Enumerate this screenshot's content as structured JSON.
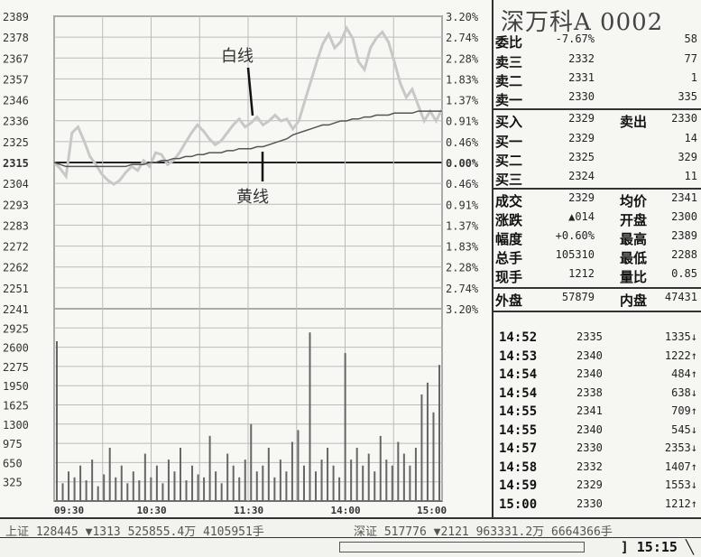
{
  "chart_data": {
    "type": "line",
    "times": [
      "09:30",
      "10:30",
      "11:30",
      "14:00",
      "15:00"
    ],
    "price_ticks": [
      "2389",
      "2378",
      "2367",
      "2357",
      "2346",
      "2336",
      "2325",
      "2315",
      "2304",
      "2293",
      "2283",
      "2272",
      "2262",
      "2251",
      "2241"
    ],
    "percent_ticks": [
      "3.20%",
      "2.74%",
      "2.28%",
      "1.83%",
      "1.37%",
      "0.91%",
      "0.46%",
      "0.00%",
      "0.46%",
      "0.91%",
      "1.37%",
      "1.83%",
      "2.28%",
      "2.74%",
      "3.20%"
    ],
    "volume_ticks": [
      "2925",
      "2600",
      "2275",
      "1950",
      "1625",
      "1300",
      "975",
      "650",
      "325"
    ],
    "ylim": [
      2241,
      2389
    ],
    "volume_ylim": [
      0,
      3250
    ],
    "prev_close": 2315,
    "annotations": {
      "white_line": "白线",
      "yellow_line": "黄线"
    },
    "series": [
      {
        "name": "白线",
        "values": [
          2315,
          2312,
          2308,
          2330,
          2333,
          2326,
          2318,
          2314,
          2309,
          2306,
          2304,
          2306,
          2310,
          2313,
          2311,
          2316,
          2313,
          2320,
          2319,
          2314,
          2316,
          2320,
          2325,
          2330,
          2334,
          2331,
          2327,
          2324,
          2326,
          2330,
          2334,
          2337,
          2333,
          2335,
          2338,
          2334,
          2336,
          2339,
          2336,
          2337,
          2332,
          2336,
          2346,
          2356,
          2366,
          2375,
          2380,
          2373,
          2376,
          2383,
          2378,
          2366,
          2362,
          2373,
          2378,
          2381,
          2376,
          2366,
          2355,
          2348,
          2352,
          2344,
          2336,
          2341,
          2336,
          2342
        ]
      },
      {
        "name": "黄线",
        "values": [
          2315,
          2314,
          2313,
          2313,
          2313,
          2313,
          2313,
          2313,
          2313,
          2313,
          2313,
          2313,
          2313,
          2314,
          2314,
          2314,
          2315,
          2315,
          2316,
          2316,
          2317,
          2317,
          2318,
          2318,
          2319,
          2319,
          2320,
          2320,
          2320,
          2321,
          2321,
          2322,
          2322,
          2322,
          2323,
          2323,
          2324,
          2325,
          2326,
          2327,
          2329,
          2330,
          2331,
          2332,
          2333,
          2334,
          2334,
          2335,
          2336,
          2336,
          2337,
          2337,
          2338,
          2338,
          2339,
          2339,
          2339,
          2340,
          2340,
          2340,
          2340,
          2341,
          2341,
          2341,
          2341,
          2341
        ]
      },
      {
        "name": "volume",
        "values": [
          2700,
          300,
          500,
          400,
          600,
          350,
          700,
          250,
          450,
          900,
          400,
          600,
          300,
          500,
          350,
          800,
          400,
          600,
          300,
          700,
          500,
          900,
          350,
          600,
          450,
          400,
          1100,
          500,
          300,
          800,
          600,
          400,
          700,
          1300,
          500,
          600,
          900,
          400,
          700,
          500,
          1000,
          1200,
          600,
          2850,
          500,
          700,
          900,
          600,
          400,
          2500,
          700,
          900,
          600,
          800,
          500,
          1100,
          700,
          600,
          1000,
          800,
          600,
          900,
          1800,
          2000,
          1500,
          2300
        ]
      }
    ]
  },
  "panel": {
    "title": "深万科A 0002",
    "rows": [
      {
        "label": "委比",
        "v1": "-7.67%",
        "v2": "58"
      },
      {
        "label": "卖三",
        "v1": "2332",
        "v2": "77"
      },
      {
        "label": "卖二",
        "v1": "2331",
        "v2": "1"
      },
      {
        "label": "卖一",
        "v1": "2330",
        "v2": "335"
      },
      {
        "label": "买入",
        "v1": "2329",
        "label2": "卖出",
        "v2": "2330"
      },
      {
        "label": "买一",
        "v1": "2329",
        "v2": "14"
      },
      {
        "label": "买二",
        "v1": "2325",
        "v2": "329"
      },
      {
        "label": "买三",
        "v1": "2324",
        "v2": "11"
      },
      {
        "label": "成交",
        "v1": "2329",
        "label2": "均价",
        "v2": "2341"
      },
      {
        "label": "涨跌",
        "v1": "▲014",
        "label2": "开盘",
        "v2": "2300"
      },
      {
        "label": "幅度",
        "v1": "+0.60%",
        "label2": "最高",
        "v2": "2389"
      },
      {
        "label": "总手",
        "v1": "105310",
        "label2": "最低",
        "v2": "2288"
      },
      {
        "label": "现手",
        "v1": "1212",
        "label2": "量比",
        "v2": "0.85"
      },
      {
        "label": "外盘",
        "v1": "57879",
        "label2": "内盘",
        "v2": "47431"
      }
    ],
    "ticks": [
      {
        "time": "14:52",
        "price": "2335",
        "vol": "1335↓"
      },
      {
        "time": "14:53",
        "price": "2340",
        "vol": "1222↑"
      },
      {
        "time": "14:54",
        "price": "2340",
        "vol": "484↑"
      },
      {
        "time": "14:54",
        "price": "2338",
        "vol": "638↓"
      },
      {
        "time": "14:55",
        "price": "2341",
        "vol": "709↑"
      },
      {
        "time": "14:55",
        "price": "2340",
        "vol": "545↓"
      },
      {
        "time": "14:57",
        "price": "2330",
        "vol": "2353↓"
      },
      {
        "time": "14:58",
        "price": "2332",
        "vol": "1407↑"
      },
      {
        "time": "14:59",
        "price": "2329",
        "vol": "1553↓"
      },
      {
        "time": "15:00",
        "price": "2330",
        "vol": "1212↑"
      }
    ]
  },
  "footer": {
    "sh": "上证 128445 ▼1313 525855.4万 4105951手",
    "sz": "深证 517776 ▼2121  963331.2万  6664366手"
  },
  "status": {
    "clock": "15:15"
  }
}
